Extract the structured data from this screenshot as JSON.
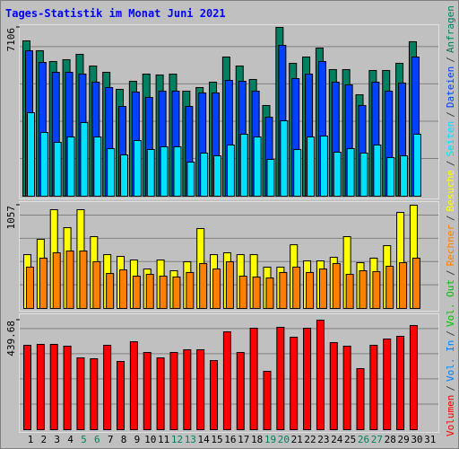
{
  "legend_separator": "/",
  "chart_data": [
    {
      "type": "bar",
      "title": "Tages-Statistik im Monat Juni 2021",
      "ylim": [
        0,
        7106
      ],
      "yticks": [
        7106
      ],
      "series": [
        {
          "name": "Anfragen",
          "color": "#008060",
          "values": [
            6539,
            6124,
            5670,
            5746,
            5972,
            5481,
            5216,
            4498,
            4838,
            5141,
            5103,
            5141,
            4423,
            4574,
            4801,
            5859,
            5481,
            4914,
            3818,
            7106,
            5594,
            5859,
            6237,
            5330,
            5330,
            4271,
            5292,
            5292,
            5594,
            6502,
            null
          ]
        },
        {
          "name": "Dateien",
          "color": "#0040ff",
          "values": [
            6124,
            5632,
            5216,
            5216,
            5141,
            4801,
            4574,
            3780,
            4385,
            4158,
            4423,
            4423,
            3780,
            4347,
            4347,
            4876,
            4838,
            4423,
            3326,
            6350,
            4952,
            5141,
            5670,
            4801,
            4687,
            3818,
            4801,
            4423,
            4763,
            5859,
            null
          ]
        },
        {
          "name": "Seiten",
          "color": "#00e0ff",
          "values": [
            3515,
            2684,
            2268,
            2495,
            3100,
            2495,
            2003,
            1739,
            2344,
            1966,
            2079,
            2079,
            1436,
            1814,
            1701,
            2155,
            2608,
            2495,
            1550,
            3175,
            1966,
            2495,
            2533,
            1852,
            2003,
            1814,
            2155,
            1625,
            1701,
            2608,
            null
          ]
        }
      ]
    },
    {
      "type": "bar",
      "ylim": [
        0,
        1057
      ],
      "yticks": [
        1057
      ],
      "series": [
        {
          "name": "Besuche",
          "color": "#ffff00",
          "values": [
            551,
            708,
            1011,
            827,
            1011,
            735,
            551,
            533,
            496,
            404,
            496,
            386,
            478,
            818,
            551,
            570,
            551,
            551,
            423,
            423,
            652,
            487,
            487,
            524,
            735,
            469,
            515,
            643,
            983,
            1057,
            null
          ]
        },
        {
          "name": "Rechner",
          "color": "#ff8000",
          "values": [
            423,
            515,
            570,
            588,
            588,
            478,
            358,
            395,
            331,
            349,
            331,
            322,
            368,
            460,
            404,
            478,
            331,
            322,
            312,
            368,
            423,
            368,
            404,
            460,
            349,
            386,
            377,
            432,
            469,
            515,
            null
          ]
        }
      ]
    },
    {
      "type": "bar",
      "ylim": [
        0,
        439.68
      ],
      "yticks": [
        439.68
      ],
      "categories": [
        "1",
        "2",
        "3",
        "4",
        "5",
        "6",
        "7",
        "8",
        "9",
        "10",
        "11",
        "12",
        "13",
        "14",
        "15",
        "16",
        "17",
        "18",
        "19",
        "20",
        "21",
        "22",
        "23",
        "24",
        "25",
        "26",
        "27",
        "28",
        "29",
        "30",
        "31"
      ],
      "category_colors": [
        "#000000",
        "#000000",
        "#000000",
        "#000000",
        "#008060",
        "#008060",
        "#000000",
        "#000000",
        "#000000",
        "#000000",
        "#000000",
        "#008060",
        "#008060",
        "#000000",
        "#000000",
        "#000000",
        "#000000",
        "#000000",
        "#008060",
        "#008060",
        "#000000",
        "#000000",
        "#000000",
        "#000000",
        "#000000",
        "#008060",
        "#008060",
        "#000000",
        "#000000",
        "#000000",
        "#000000"
      ],
      "series": [
        {
          "name": "Volumen",
          "color": "#ff0000",
          "values": [
            338.8,
            342.4,
            342.4,
            335.2,
            288.3,
            284.7,
            338.8,
            273.9,
            353.2,
            309.9,
            288.3,
            309.9,
            320.8,
            320.8,
            277.5,
            392.8,
            309.9,
            407.3,
            234.3,
            410.9,
            371.2,
            407.3,
            439.68,
            349.6,
            335.2,
            245.1,
            338.8,
            364.0,
            374.8,
            418.1,
            null
          ]
        }
      ],
      "extra_legend": [
        {
          "name": "Vol. In",
          "color": "#0080ff"
        },
        {
          "name": "Vol. Out",
          "color": "#00c000"
        }
      ]
    }
  ]
}
